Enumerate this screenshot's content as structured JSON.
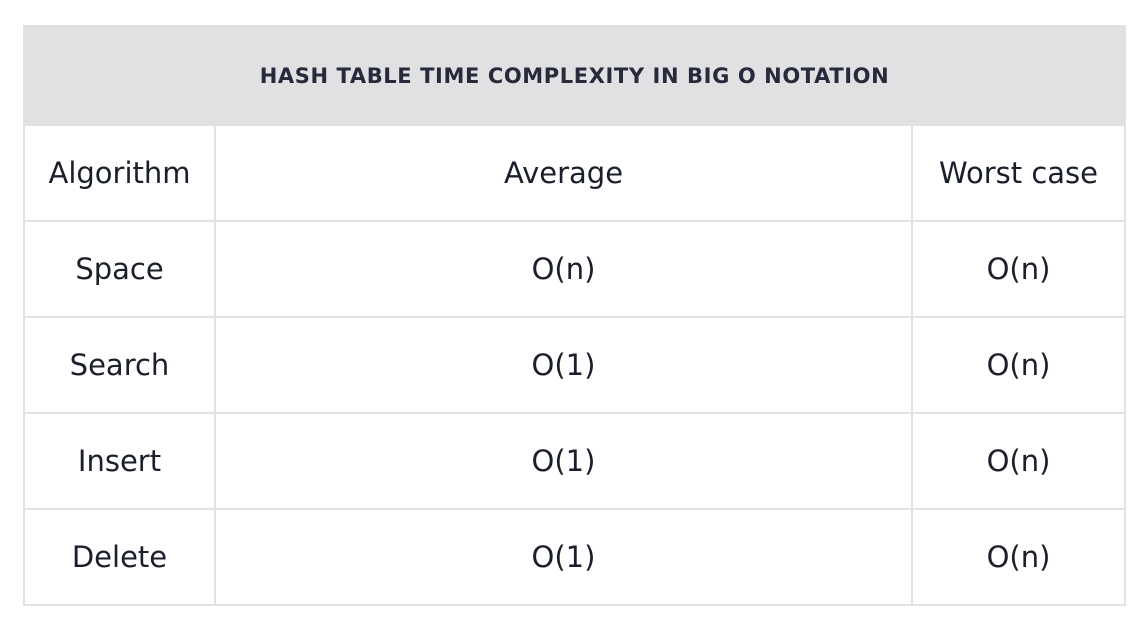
{
  "table": {
    "title": "HASH TABLE TIME COMPLEXITY IN BIG O NOTATION",
    "headers": [
      "Algorithm",
      "Average",
      "Worst case"
    ],
    "rows": [
      [
        "Space",
        "O(n)",
        "O(n)"
      ],
      [
        "Search",
        "O(1)",
        "O(n)"
      ],
      [
        "Insert",
        "O(1)",
        "O(n)"
      ],
      [
        "Delete",
        "O(1)",
        "O(n)"
      ]
    ]
  }
}
